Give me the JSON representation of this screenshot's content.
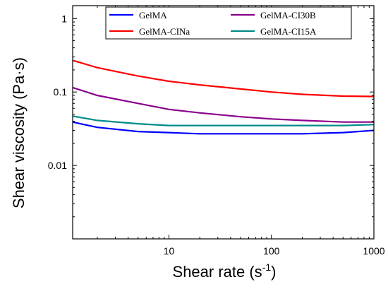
{
  "chart_data": {
    "type": "line",
    "xlabel": "Shear rate (s",
    "xlabel_sup": "-1",
    "xlabel_close": ")",
    "ylabel": "Shear viscosity (Pa·s)",
    "x_scale": "log",
    "y_scale": "log",
    "xlim": [
      1.15,
      1000
    ],
    "ylim": [
      0.001,
      1.5
    ],
    "x_ticks": [
      10,
      100,
      1000
    ],
    "x_tick_labels": [
      "10",
      "100",
      "1000"
    ],
    "y_ticks": [
      0.01,
      0.1,
      1
    ],
    "y_tick_labels": [
      "0.01",
      "0.1",
      "1"
    ],
    "grid": false,
    "legend_position": "top",
    "series": [
      {
        "name": "GelMA",
        "color": "#0000ff",
        "x": [
          1.15,
          2,
          5,
          10,
          20,
          50,
          100,
          200,
          500,
          1000
        ],
        "y": [
          0.039,
          0.033,
          0.029,
          0.028,
          0.027,
          0.027,
          0.027,
          0.027,
          0.028,
          0.03
        ]
      },
      {
        "name": "GelMA-CINa",
        "color": "#ff0000",
        "x": [
          1.15,
          2,
          5,
          10,
          20,
          50,
          100,
          200,
          500,
          1000
        ],
        "y": [
          0.27,
          0.215,
          0.165,
          0.14,
          0.125,
          0.11,
          0.1,
          0.093,
          0.088,
          0.087
        ]
      },
      {
        "name": "GelMA-CI30B",
        "color": "#8b008b",
        "x": [
          1.15,
          2,
          5,
          10,
          20,
          50,
          100,
          200,
          500,
          1000
        ],
        "y": [
          0.115,
          0.09,
          0.07,
          0.058,
          0.052,
          0.046,
          0.043,
          0.041,
          0.039,
          0.039
        ]
      },
      {
        "name": "GelMA-CI15A",
        "color": "#008b8b",
        "x": [
          1.15,
          2,
          5,
          10,
          20,
          50,
          100,
          200,
          500,
          1000
        ],
        "y": [
          0.047,
          0.041,
          0.037,
          0.035,
          0.035,
          0.035,
          0.035,
          0.035,
          0.035,
          0.036
        ]
      }
    ]
  }
}
